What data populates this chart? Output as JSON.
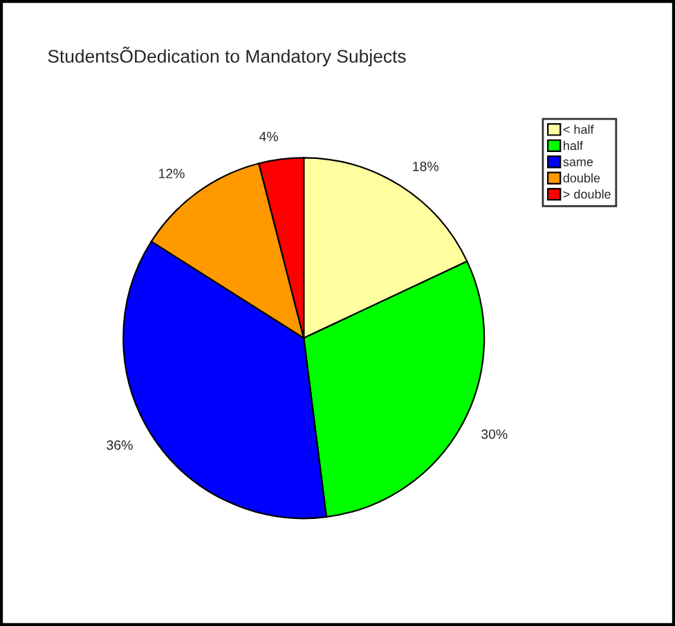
{
  "chart_data": {
    "type": "pie",
    "title": "StudentsÕDedication to Mandatory Subjects",
    "categories": [
      "< half",
      "half",
      "same",
      "double",
      "> double"
    ],
    "values": [
      18,
      30,
      36,
      12,
      4
    ],
    "value_labels": [
      "18%",
      "30%",
      "36%",
      "12%",
      "4%"
    ],
    "colors": [
      "#ffffa0",
      "#00ff00",
      "#0000ff",
      "#ff9900",
      "#ff0000"
    ],
    "legend": "right"
  }
}
